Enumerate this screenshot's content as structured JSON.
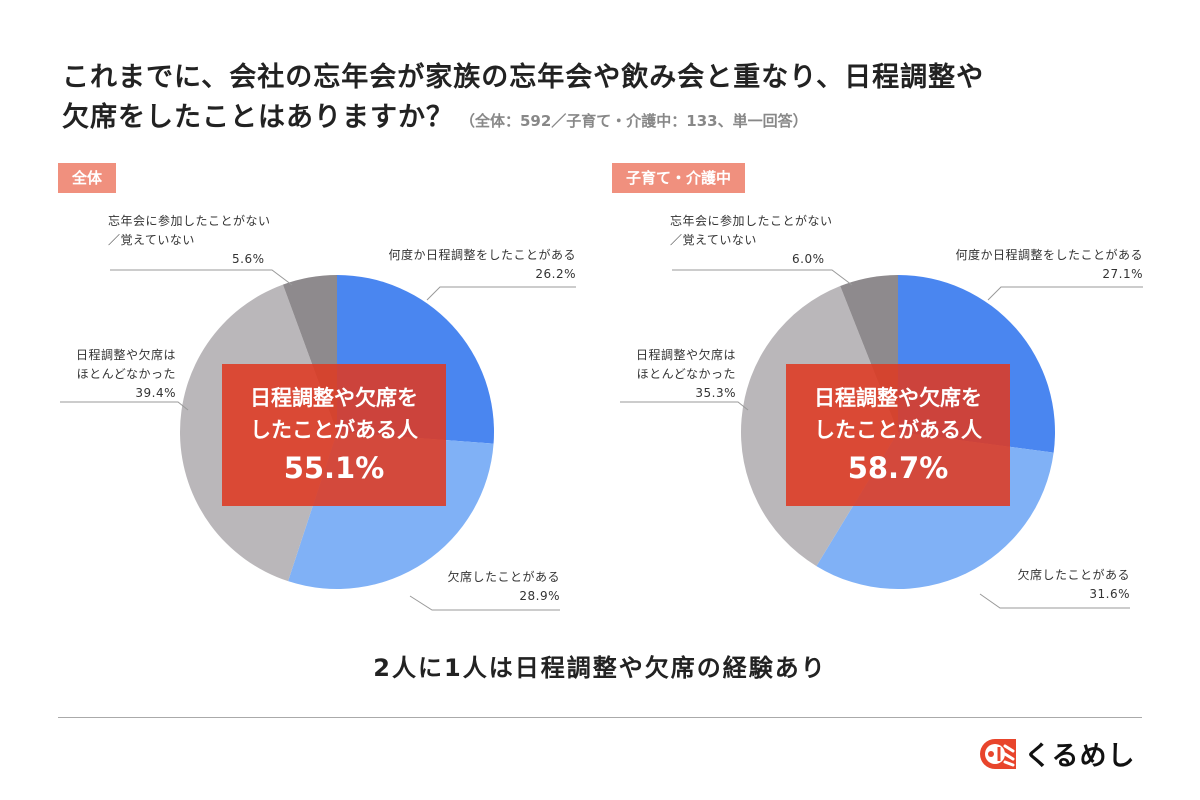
{
  "title": {
    "line1": "これまでに、会社の忘年会が家族の忘年会や飲み会と重なり、日程調整や",
    "line2": "欠席をしたことはありますか？",
    "subtitle": "（全体：592／子育て・介護中：133、単一回答）"
  },
  "chart_data": [
    {
      "type": "pie",
      "title": "全体",
      "start": "12 o'clock, clockwise",
      "categories": [
        "何度か日程調整をしたことがある",
        "欠席したことがある",
        "日程調整や欠席はほとんどなかった",
        "忘年会に参加したことがない／覚えていない"
      ],
      "values": [
        26.2,
        28.9,
        39.4,
        5.6
      ],
      "labels": [
        "26.2%",
        "28.9%",
        "39.4%",
        "5.6%"
      ],
      "colors": [
        "#4a86f0",
        "#80b1f6",
        "#bab7ba",
        "#8e8a8d"
      ],
      "callout": {
        "text1": "日程調整や欠席を",
        "text2": "したことがある人",
        "value": "55.1%"
      }
    },
    {
      "type": "pie",
      "title": "子育て・介護中",
      "start": "12 o'clock, clockwise",
      "categories": [
        "何度か日程調整をしたことがある",
        "欠席したことがある",
        "日程調整や欠席はほとんどなかった",
        "忘年会に参加したことがない／覚えていない"
      ],
      "values": [
        27.1,
        31.6,
        35.3,
        6.0
      ],
      "labels": [
        "27.1%",
        "31.6%",
        "35.3%",
        "6.0%"
      ],
      "colors": [
        "#4a86f0",
        "#80b1f6",
        "#bab7ba",
        "#8e8a8d"
      ],
      "callout": {
        "text1": "日程調整や欠席を",
        "text2": "したことがある人",
        "value": "58.7%"
      }
    }
  ],
  "cat_lines": {
    "blue": "何度か日程調整をしたことがある",
    "lightblue": "欠席したことがある",
    "gray1": "日程調整や欠席は",
    "gray2": "ほとんどなかった",
    "dark1": "忘年会に参加したことがない",
    "dark2": "／覚えていない"
  },
  "conclusion": "2人に1人は日程調整や欠席の経験あり",
  "logo": {
    "text": "くるめし",
    "color": "#e8452c"
  }
}
